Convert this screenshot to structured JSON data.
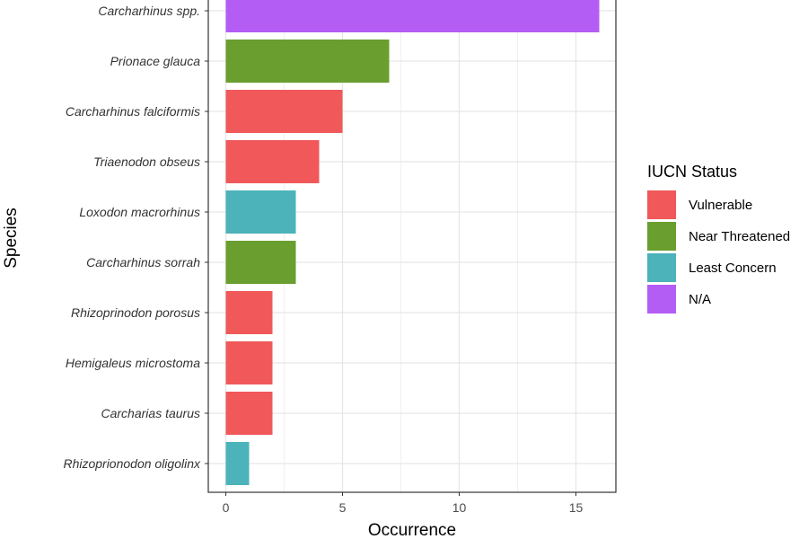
{
  "chart_data": {
    "type": "bar",
    "orientation": "horizontal",
    "xlabel": "Occurrence",
    "ylabel": "Species",
    "xlim": [
      0,
      16
    ],
    "xticks": [
      0,
      5,
      10,
      15
    ],
    "grid": true,
    "legend": {
      "title": "IUCN Status",
      "position": "right",
      "entries": [
        {
          "label": "Vulnerable",
          "color": "#F0585A"
        },
        {
          "label": "Near Threatened",
          "color": "#6A9E2F"
        },
        {
          "label": "Least Concern",
          "color": "#4BB3B9"
        },
        {
          "label": "N/A",
          "color": "#B45DF4"
        }
      ]
    },
    "bars": [
      {
        "species": "Carcharhinus spp.",
        "value": 16,
        "status": "N/A"
      },
      {
        "species": "Prionace glauca",
        "value": 7,
        "status": "Near Threatened"
      },
      {
        "species": "Carcharhinus falciformis",
        "value": 5,
        "status": "Vulnerable"
      },
      {
        "species": "Triaenodon obseus",
        "value": 4,
        "status": "Vulnerable"
      },
      {
        "species": "Loxodon macrorhinus",
        "value": 3,
        "status": "Least Concern"
      },
      {
        "species": "Carcharhinus sorrah",
        "value": 3,
        "status": "Near Threatened"
      },
      {
        "species": "Rhizoprinodon porosus",
        "value": 2,
        "status": "Vulnerable"
      },
      {
        "species": "Hemigaleus microstoma",
        "value": 2,
        "status": "Vulnerable"
      },
      {
        "species": "Carcharias taurus",
        "value": 2,
        "status": "Vulnerable"
      },
      {
        "species": "Rhizoprionodon oligolinx",
        "value": 1,
        "status": "Least Concern"
      }
    ]
  }
}
